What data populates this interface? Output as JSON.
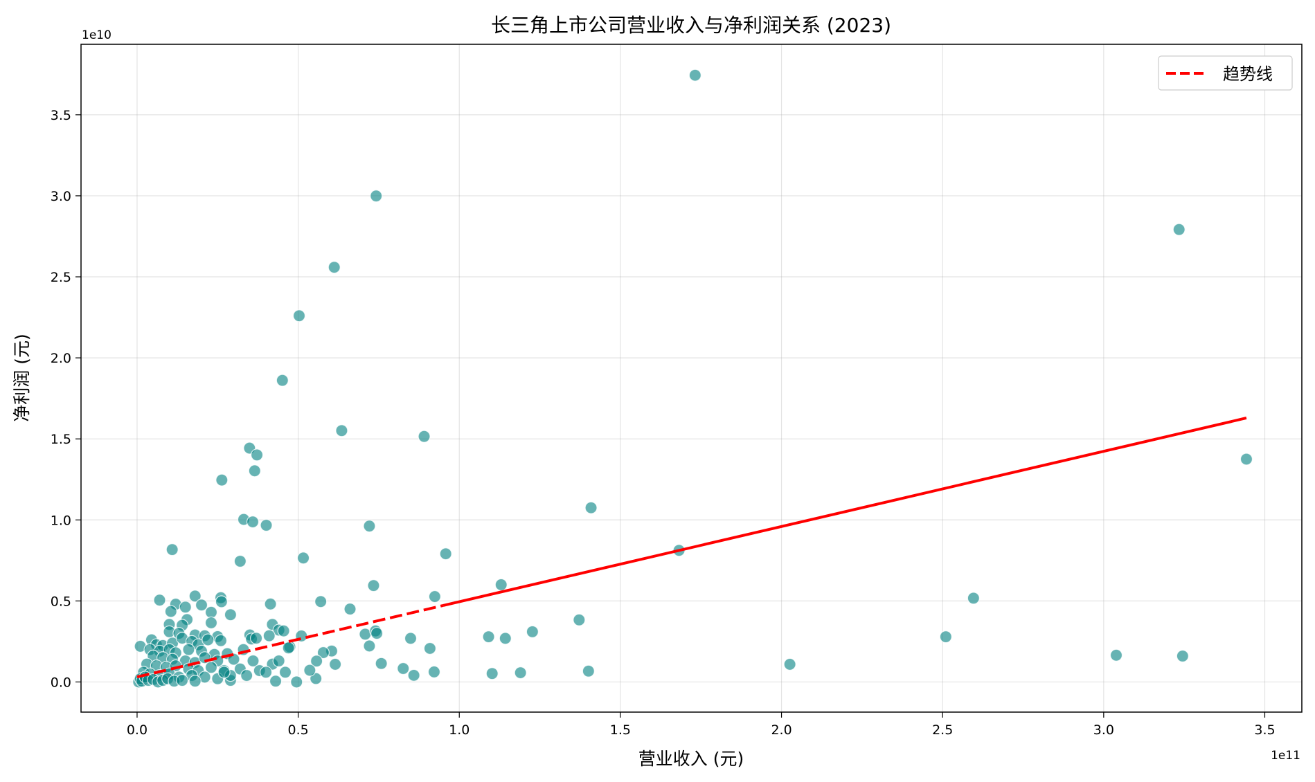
{
  "chart_data": {
    "type": "scatter",
    "title": "长三角上市公司营业收入与净利润关系 (2023)",
    "xlabel": "营业收入 (元)",
    "ylabel": "净利润 (元)",
    "x_offset_label": "1e11",
    "y_offset_label": "1e10",
    "xlim": [
      -0.174,
      3.615
    ],
    "ylim": [
      -0.186,
      3.935
    ],
    "x_ticks": [
      "0.0",
      "0.5",
      "1.0",
      "1.5",
      "2.0",
      "2.5",
      "3.0",
      "3.5"
    ],
    "x_tick_values": [
      0,
      0.5,
      1,
      1.5,
      2,
      2.5,
      3,
      3.5
    ],
    "y_ticks": [
      "0.0",
      "0.5",
      "1.0",
      "1.5",
      "2.0",
      "2.5",
      "3.0",
      "3.5"
    ],
    "y_tick_values": [
      0,
      0.5,
      1,
      1.5,
      2,
      2.5,
      3,
      3.5
    ],
    "grid": true,
    "legend": {
      "position": "top-right",
      "entries": [
        "趋势线"
      ]
    },
    "colors": {
      "points": "#008080",
      "trend": "#ff0000"
    },
    "points": [
      [
        1.732,
        3.744
      ],
      [
        0.742,
        2.999
      ],
      [
        3.234,
        2.792
      ],
      [
        0.612,
        2.559
      ],
      [
        0.503,
        2.26
      ],
      [
        0.451,
        1.861
      ],
      [
        0.635,
        1.551
      ],
      [
        0.891,
        1.515
      ],
      [
        3.443,
        1.375
      ],
      [
        0.349,
        1.443
      ],
      [
        0.372,
        1.401
      ],
      [
        0.365,
        1.303
      ],
      [
        0.263,
        1.246
      ],
      [
        1.409,
        1.075
      ],
      [
        0.331,
        1.003
      ],
      [
        0.359,
        0.988
      ],
      [
        0.401,
        0.967
      ],
      [
        0.721,
        0.962
      ],
      [
        0.109,
        0.817
      ],
      [
        1.682,
        0.812
      ],
      [
        0.958,
        0.791
      ],
      [
        0.516,
        0.765
      ],
      [
        0.32,
        0.745
      ],
      [
        1.13,
        0.6
      ],
      [
        0.734,
        0.595
      ],
      [
        2.596,
        0.517
      ],
      [
        0.924,
        0.527
      ],
      [
        0.57,
        0.496
      ],
      [
        0.414,
        0.481
      ],
      [
        0.661,
        0.45
      ],
      [
        1.372,
        0.383
      ],
      [
        2.51,
        0.279
      ],
      [
        1.091,
        0.279
      ],
      [
        1.143,
        0.269
      ],
      [
        1.227,
        0.31
      ],
      [
        0.849,
        0.269
      ],
      [
        0.909,
        0.207
      ],
      [
        3.039,
        0.165
      ],
      [
        3.245,
        0.16
      ],
      [
        2.026,
        0.109
      ],
      [
        1.102,
        0.052
      ],
      [
        1.19,
        0.057
      ],
      [
        1.401,
        0.067
      ],
      [
        0.922,
        0.062
      ],
      [
        0.826,
        0.083
      ],
      [
        0.859,
        0.041
      ],
      [
        0.758,
        0.114
      ],
      [
        0.721,
        0.222
      ],
      [
        0.708,
        0.295
      ],
      [
        0.74,
        0.315
      ],
      [
        0.744,
        0.3
      ],
      [
        0.615,
        0.109
      ],
      [
        0.604,
        0.191
      ],
      [
        0.578,
        0.181
      ],
      [
        0.557,
        0.129
      ],
      [
        0.555,
        0.021
      ],
      [
        0.536,
        0.072
      ],
      [
        0.495,
        0.0
      ],
      [
        0.51,
        0.284
      ],
      [
        0.474,
        0.217
      ],
      [
        0.07,
        0.505
      ],
      [
        0.18,
        0.53
      ],
      [
        0.26,
        0.52
      ],
      [
        0.262,
        0.495
      ],
      [
        0.12,
        0.48
      ],
      [
        0.15,
        0.462
      ],
      [
        0.2,
        0.475
      ],
      [
        0.105,
        0.435
      ],
      [
        0.23,
        0.43
      ],
      [
        0.29,
        0.415
      ],
      [
        0.155,
        0.385
      ],
      [
        0.23,
        0.365
      ],
      [
        0.1,
        0.355
      ],
      [
        0.14,
        0.35
      ],
      [
        0.42,
        0.355
      ],
      [
        0.44,
        0.32
      ],
      [
        0.455,
        0.315
      ],
      [
        0.1,
        0.31
      ],
      [
        0.13,
        0.3
      ],
      [
        0.18,
        0.29
      ],
      [
        0.21,
        0.285
      ],
      [
        0.25,
        0.28
      ],
      [
        0.35,
        0.29
      ],
      [
        0.355,
        0.265
      ],
      [
        0.37,
        0.27
      ],
      [
        0.41,
        0.285
      ],
      [
        0.045,
        0.26
      ],
      [
        0.06,
        0.23
      ],
      [
        0.08,
        0.225
      ],
      [
        0.11,
        0.24
      ],
      [
        0.14,
        0.27
      ],
      [
        0.17,
        0.25
      ],
      [
        0.19,
        0.23
      ],
      [
        0.22,
        0.26
      ],
      [
        0.26,
        0.255
      ],
      [
        0.01,
        0.22
      ],
      [
        0.04,
        0.2
      ],
      [
        0.07,
        0.19
      ],
      [
        0.1,
        0.2
      ],
      [
        0.12,
        0.18
      ],
      [
        0.16,
        0.2
      ],
      [
        0.2,
        0.19
      ],
      [
        0.24,
        0.17
      ],
      [
        0.28,
        0.175
      ],
      [
        0.33,
        0.2
      ],
      [
        0.05,
        0.16
      ],
      [
        0.08,
        0.15
      ],
      [
        0.11,
        0.14
      ],
      [
        0.15,
        0.13
      ],
      [
        0.18,
        0.12
      ],
      [
        0.21,
        0.15
      ],
      [
        0.25,
        0.13
      ],
      [
        0.3,
        0.14
      ],
      [
        0.36,
        0.13
      ],
      [
        0.03,
        0.11
      ],
      [
        0.06,
        0.1
      ],
      [
        0.09,
        0.09
      ],
      [
        0.12,
        0.1
      ],
      [
        0.16,
        0.08
      ],
      [
        0.19,
        0.07
      ],
      [
        0.23,
        0.09
      ],
      [
        0.27,
        0.07
      ],
      [
        0.32,
        0.08
      ],
      [
        0.38,
        0.07
      ],
      [
        0.42,
        0.11
      ],
      [
        0.44,
        0.13
      ],
      [
        0.02,
        0.06
      ],
      [
        0.04,
        0.05
      ],
      [
        0.07,
        0.04
      ],
      [
        0.1,
        0.05
      ],
      [
        0.13,
        0.03
      ],
      [
        0.17,
        0.04
      ],
      [
        0.21,
        0.03
      ],
      [
        0.25,
        0.02
      ],
      [
        0.29,
        0.01
      ],
      [
        0.34,
        0.04
      ],
      [
        0.4,
        0.06
      ],
      [
        0.46,
        0.06
      ],
      [
        0.005,
        0.0
      ],
      [
        0.01,
        0.02
      ],
      [
        0.015,
        0.005
      ],
      [
        0.025,
        0.03
      ],
      [
        0.035,
        0.01
      ],
      [
        0.05,
        0.015
      ],
      [
        0.065,
        0.0
      ],
      [
        0.08,
        0.01
      ],
      [
        0.095,
        0.02
      ],
      [
        0.115,
        0.005
      ],
      [
        0.14,
        0.01
      ],
      [
        0.18,
        0.005
      ],
      [
        0.43,
        0.005
      ],
      [
        0.47,
        0.21
      ],
      [
        0.29,
        0.04
      ],
      [
        0.27,
        0.06
      ]
    ],
    "trend": {
      "x": [
        0.0,
        3.443
      ],
      "y": [
        0.031,
        1.629
      ]
    }
  }
}
